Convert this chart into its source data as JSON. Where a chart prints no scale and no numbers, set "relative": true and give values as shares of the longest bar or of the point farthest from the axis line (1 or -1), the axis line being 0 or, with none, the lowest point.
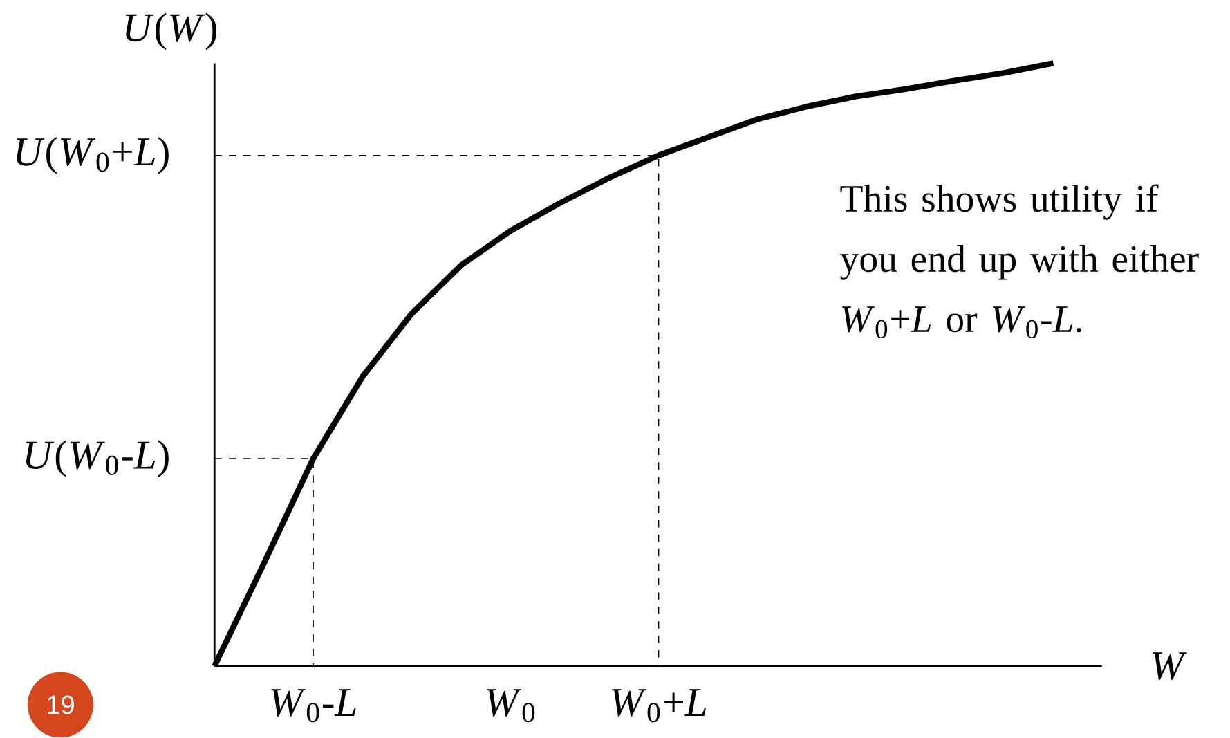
{
  "chart_data": {
    "type": "line",
    "relative": true,
    "xlabel": "*W*",
    "ylabel": "*U*(*W*)",
    "categories": [
      null,
      null,
      "*W*$_{0}$-*L*",
      null,
      null,
      null,
      "*W*$_{0}$",
      null,
      null,
      "*W*$_{0}$+*L*",
      null,
      null,
      null,
      null,
      null,
      null,
      null,
      null
    ],
    "values": [
      0,
      0.17,
      0.344,
      0.48,
      0.585,
      0.665,
      0.722,
      0.768,
      0.81,
      0.847,
      0.877,
      0.907,
      0.928,
      0.945,
      0.957,
      0.971,
      0.984,
      1
    ],
    "color": "#000000",
    "line_style": "solid",
    "ref_lines": [
      {
        "axis": "y",
        "value": 0.847,
        "label": "*U*(*W*$_{0}$+*L*)",
        "line_style": "dashed"
      },
      {
        "axis": "y",
        "value": 0.344,
        "label": "*U*(*W*$_{0}$-*L*)",
        "line_style": "dashed"
      }
    ],
    "annotations": [
      "This shows utility if you end up with either *W*$_{0}$+*L* or *W*$_{0}$-*L*.",
      "19"
    ]
  }
}
